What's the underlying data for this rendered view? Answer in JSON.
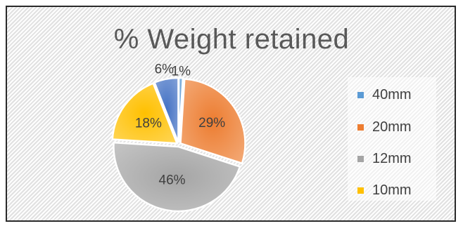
{
  "chart_data": {
    "type": "pie",
    "title": "% Weight retained",
    "categories": [
      "40mm",
      "20mm",
      "12mm",
      "10mm",
      "unlabeled"
    ],
    "values": [
      1,
      29,
      46,
      18,
      6
    ],
    "labels": [
      "1%",
      "29%",
      "46%",
      "18%",
      "6%"
    ],
    "colors": [
      "#5b9bd5",
      "#ed7d31",
      "#a5a5a5",
      "#ffc000",
      "#4472c4"
    ],
    "legend": {
      "position": "right",
      "items": [
        {
          "label": "40mm",
          "color": "#5b9bd5"
        },
        {
          "label": "20mm",
          "color": "#ed7d31"
        },
        {
          "label": "12mm",
          "color": "#a5a5a5"
        },
        {
          "label": "10mm",
          "color": "#ffc000"
        }
      ]
    }
  }
}
